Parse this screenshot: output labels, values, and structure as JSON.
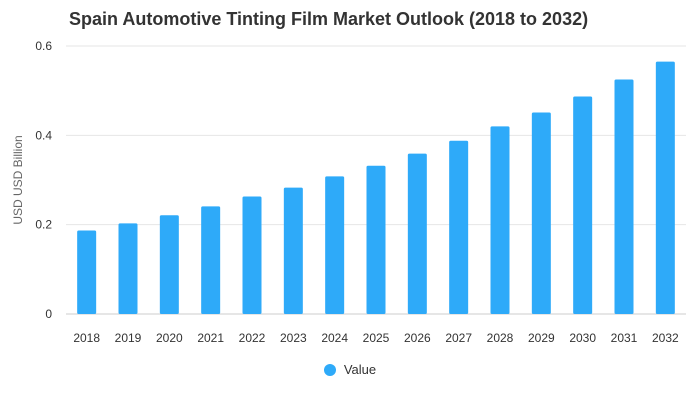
{
  "chart_data": {
    "type": "bar",
    "title": "Spain Automotive Tinting Film Market Outlook (2018 to 2032)",
    "ylabel": "USD USD Billion",
    "xlabel": "",
    "categories": [
      "2018",
      "2019",
      "2020",
      "2021",
      "2022",
      "2023",
      "2024",
      "2025",
      "2026",
      "2027",
      "2028",
      "2029",
      "2030",
      "2031",
      "2032"
    ],
    "series": [
      {
        "name": "Value",
        "values": [
          0.187,
          0.203,
          0.221,
          0.241,
          0.263,
          0.283,
          0.308,
          0.332,
          0.359,
          0.388,
          0.42,
          0.451,
          0.487,
          0.525,
          0.565
        ]
      }
    ],
    "ylim": [
      0,
      0.6
    ],
    "yticks": [
      "0",
      "0.2",
      "0.4",
      "0.6"
    ],
    "ytick_values": [
      0,
      0.2,
      0.4,
      0.6
    ],
    "grid": true,
    "legend_position": "bottom-center",
    "colors": {
      "bar": "#2eaaf9",
      "grid": "#e6e6e6",
      "axis_text": "#333333"
    }
  }
}
